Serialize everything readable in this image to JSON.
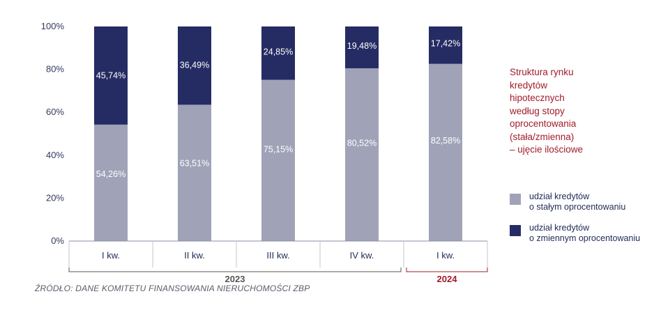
{
  "chart_data": {
    "type": "bar",
    "stacked": true,
    "title": "Struktura rynku\nkredytów\nhipotecznych\nwedług stopy\noprocentowania\n(stała/zmienna)\n– ujęcie ilościowe",
    "categories": [
      "I kw.",
      "II kw.",
      "III kw.",
      "IV kw.",
      "I kw."
    ],
    "groups": [
      {
        "label": "2023",
        "span": [
          0,
          3
        ],
        "color": "#555555"
      },
      {
        "label": "2024",
        "span": [
          4,
          4
        ],
        "color": "#a01c2a"
      }
    ],
    "series": [
      {
        "name": "udział kredytów\no stałym oprocentowaniu",
        "color": "#a0a2b8",
        "values": [
          54.26,
          63.51,
          75.15,
          80.52,
          82.58
        ],
        "labels": [
          "54,26%",
          "63,51%",
          "75,15%",
          "80,52%",
          "82,58%"
        ]
      },
      {
        "name": "udział kredytów\no zmiennym oprocentowaniu",
        "color": "#252c63",
        "values": [
          45.74,
          36.49,
          24.85,
          19.48,
          17.42
        ],
        "labels": [
          "45,74%",
          "36,49%",
          "24,85%",
          "19,48%",
          "17,42%"
        ]
      }
    ],
    "yticks": [
      "0%",
      "20%",
      "40%",
      "60%",
      "80%",
      "100%"
    ],
    "ylim": [
      0,
      100
    ],
    "grid": false,
    "legend_position": "right"
  },
  "source": "ŹRÓDŁO: DANE KOMITETU FINANSOWANIA NIERUCHOMOŚCI ZBP"
}
